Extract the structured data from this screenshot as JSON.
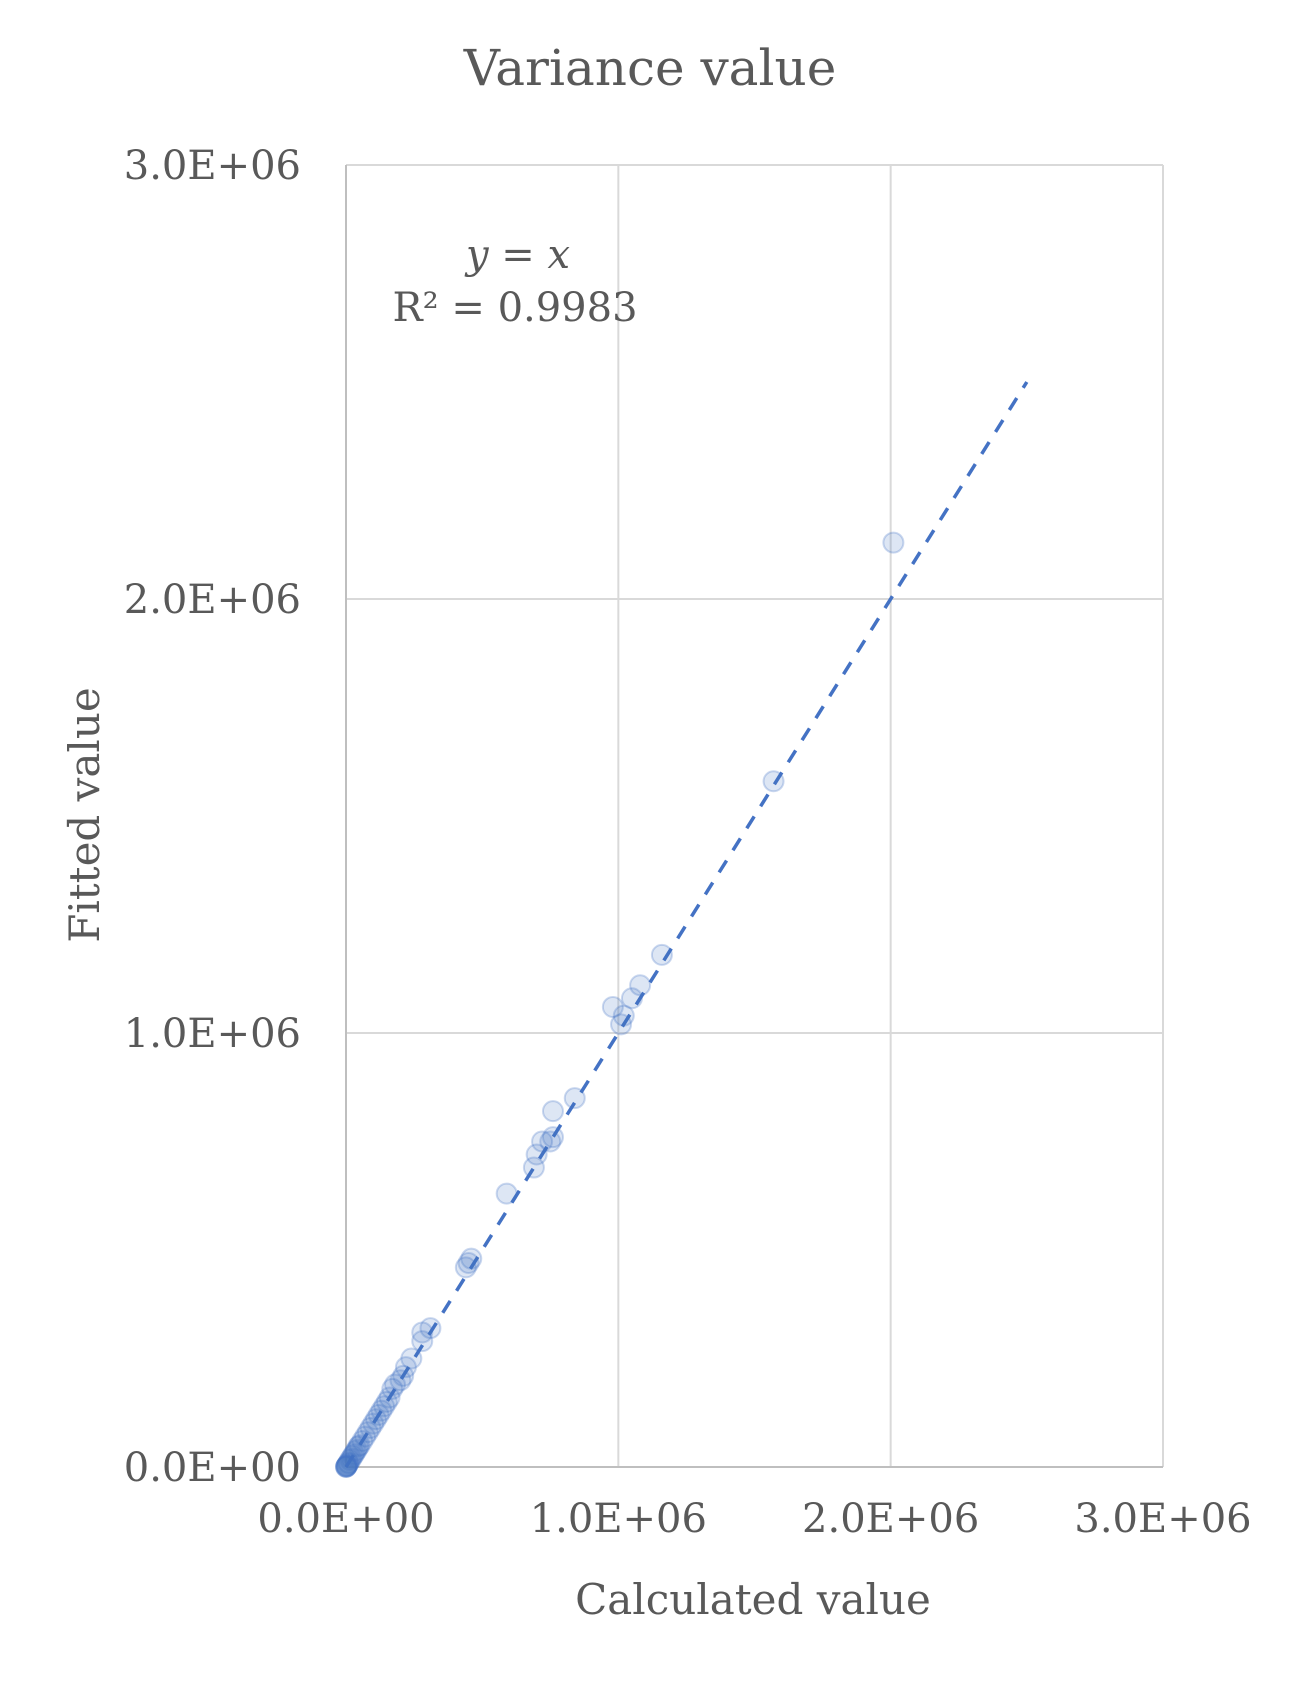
{
  "chart_data": {
    "type": "scatter",
    "title": "Variance value",
    "xlabel": "Calculated value",
    "ylabel": "Fitted value",
    "xlim": [
      0,
      3000000
    ],
    "ylim": [
      0,
      3000000
    ],
    "x_ticks": [
      "0.0E+00",
      "1.0E+06",
      "2.0E+06",
      "3.0E+06"
    ],
    "y_ticks": [
      "0.0E+00",
      "1.0E+06",
      "2.0E+06",
      "3.0E+06"
    ],
    "grid": true,
    "annotation": {
      "equation": "y = x",
      "r_squared": "R² = 0.9983"
    },
    "trendline": {
      "type": "linear",
      "slope": 1,
      "intercept": 0,
      "x_range": [
        0,
        2500000
      ]
    },
    "series": [
      {
        "points": [
          [
            2010000,
            2130000
          ],
          [
            1570000,
            1580000
          ],
          [
            1160000,
            1180000
          ],
          [
            1080000,
            1110000
          ],
          [
            1050000,
            1080000
          ],
          [
            980000,
            1060000
          ],
          [
            1020000,
            1040000
          ],
          [
            1010000,
            1020000
          ],
          [
            840000,
            850000
          ],
          [
            760000,
            820000
          ],
          [
            760000,
            760000
          ],
          [
            750000,
            750000
          ],
          [
            720000,
            750000
          ],
          [
            700000,
            720000
          ],
          [
            690000,
            690000
          ],
          [
            590000,
            630000
          ],
          [
            460000,
            480000
          ],
          [
            450000,
            470000
          ],
          [
            440000,
            460000
          ],
          [
            310000,
            320000
          ],
          [
            280000,
            310000
          ],
          [
            280000,
            290000
          ],
          [
            240000,
            250000
          ],
          [
            220000,
            230000
          ],
          [
            210000,
            210000
          ],
          [
            200000,
            200000
          ],
          [
            180000,
            190000
          ],
          [
            170000,
            180000
          ],
          [
            160000,
            160000
          ],
          [
            150000,
            150000
          ],
          [
            140000,
            140000
          ],
          [
            130000,
            130000
          ],
          [
            120000,
            120000
          ],
          [
            110000,
            110000
          ],
          [
            100000,
            100000
          ],
          [
            90000,
            90000
          ],
          [
            80000,
            80000
          ],
          [
            70000,
            70000
          ],
          [
            60000,
            60000
          ],
          [
            50000,
            50000
          ],
          [
            45000,
            47000
          ],
          [
            40000,
            40000
          ],
          [
            35000,
            36000
          ],
          [
            30000,
            30000
          ],
          [
            25000,
            26000
          ],
          [
            20000,
            20000
          ],
          [
            15000,
            16000
          ],
          [
            10000,
            10000
          ],
          [
            8000,
            8000
          ],
          [
            5000,
            5000
          ],
          [
            3000,
            3000
          ],
          [
            2000,
            2000
          ],
          [
            1000,
            1000
          ],
          [
            500,
            500
          ],
          [
            0,
            0
          ]
        ]
      }
    ]
  }
}
